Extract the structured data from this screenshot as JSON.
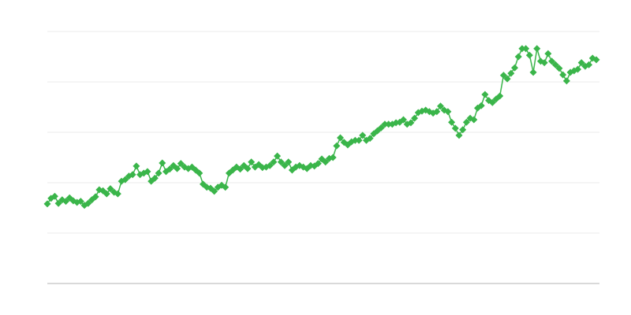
{
  "chart_data": {
    "type": "line",
    "title": "",
    "xlabel": "",
    "ylabel": "",
    "ylim": [
      0,
      5
    ],
    "yticks": [
      0,
      1,
      2,
      3,
      4,
      5
    ],
    "grid": true,
    "legend": "none",
    "marker": "diamond",
    "color": "#3ab54a",
    "series": [
      {
        "values": [
          1.58,
          1.69,
          1.73,
          1.59,
          1.66,
          1.63,
          1.7,
          1.64,
          1.61,
          1.63,
          1.55,
          1.59,
          1.66,
          1.72,
          1.86,
          1.84,
          1.78,
          1.88,
          1.81,
          1.78,
          2.03,
          2.06,
          2.13,
          2.16,
          2.33,
          2.16,
          2.19,
          2.22,
          2.03,
          2.09,
          2.19,
          2.39,
          2.22,
          2.27,
          2.34,
          2.28,
          2.38,
          2.31,
          2.28,
          2.31,
          2.25,
          2.19,
          1.97,
          1.91,
          1.89,
          1.83,
          1.91,
          1.95,
          1.91,
          2.19,
          2.25,
          2.31,
          2.27,
          2.34,
          2.28,
          2.41,
          2.31,
          2.36,
          2.3,
          2.31,
          2.34,
          2.41,
          2.53,
          2.41,
          2.34,
          2.41,
          2.25,
          2.31,
          2.34,
          2.31,
          2.28,
          2.34,
          2.33,
          2.38,
          2.47,
          2.41,
          2.48,
          2.5,
          2.73,
          2.89,
          2.8,
          2.75,
          2.81,
          2.84,
          2.84,
          2.94,
          2.84,
          2.88,
          2.97,
          3.03,
          3.09,
          3.16,
          3.16,
          3.16,
          3.19,
          3.2,
          3.25,
          3.16,
          3.19,
          3.28,
          3.39,
          3.42,
          3.44,
          3.41,
          3.38,
          3.41,
          3.52,
          3.44,
          3.41,
          3.2,
          3.08,
          2.94,
          3.05,
          3.2,
          3.28,
          3.25,
          3.48,
          3.53,
          3.75,
          3.63,
          3.59,
          3.66,
          3.72,
          4.13,
          4.06,
          4.17,
          4.28,
          4.5,
          4.66,
          4.66,
          4.53,
          4.19,
          4.66,
          4.41,
          4.38,
          4.56,
          4.41,
          4.34,
          4.27,
          4.14,
          4.02,
          4.19,
          4.22,
          4.25,
          4.38,
          4.31,
          4.34,
          4.47,
          4.44
        ]
      }
    ]
  }
}
